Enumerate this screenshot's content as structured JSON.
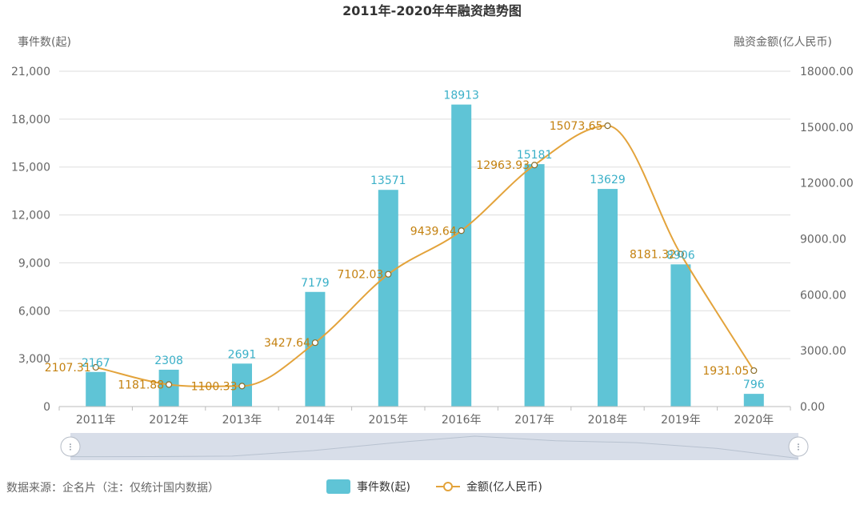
{
  "colors": {
    "bar": "#5fc4d6",
    "line": "#e3a33b",
    "bar_label": "#3ab0c8",
    "line_label": "#c4810f",
    "grid": "#dddddd",
    "axis_text": "#666666",
    "slider_fill": "#d8dee9"
  },
  "chart_data": {
    "type": "bar",
    "title": "2011年-2020年年融资趋势图",
    "categories": [
      "2011年",
      "2012年",
      "2013年",
      "2014年",
      "2015年",
      "2016年",
      "2017年",
      "2018年",
      "2019年",
      "2020年"
    ],
    "y_left_label": "事件数(起)",
    "y_right_label": "融资金额(亿人民币)",
    "y_left_ticks": [
      "0",
      "3,000",
      "6,000",
      "9,000",
      "12,000",
      "15,000",
      "18,000",
      "21,000"
    ],
    "y_right_ticks": [
      "0.00",
      "3000.00",
      "6000.00",
      "9000.00",
      "12000.00",
      "15000.00",
      "18000.00"
    ],
    "ylim_left": [
      0,
      21000
    ],
    "ylim_right": [
      0,
      18000
    ],
    "grid": true,
    "legend_position": "bottom-center",
    "series": [
      {
        "name": "事件数(起)",
        "type": "bar",
        "axis": "left",
        "values": [
          2167,
          2308,
          2691,
          7179,
          13571,
          18913,
          15181,
          13629,
          8906,
          796
        ],
        "labels": [
          "2167",
          "2308",
          "2691",
          "7179",
          "13571",
          "18913",
          "15181",
          "13629",
          "8906",
          "796"
        ]
      },
      {
        "name": "金额(亿人民币)",
        "type": "line",
        "axis": "right",
        "smooth": true,
        "values": [
          2107.31,
          1181.88,
          1100.33,
          3427.64,
          7102.03,
          9439.64,
          12963.93,
          15073.65,
          8181.32,
          1931.05
        ],
        "labels": [
          "2107.31",
          "1181.88",
          "1100.33",
          "3427.64",
          "7102.03",
          "9439.64",
          "12963.93",
          "15073.65",
          "8181.32",
          "1931.05"
        ]
      }
    ]
  },
  "footer": {
    "source": "数据来源：企名片（注：仅统计国内数据）"
  },
  "legend": {
    "bar_label": "事件数(起)",
    "line_label": "金额(亿人民币)"
  },
  "zoom_slider": {
    "handle_glyph": "⁝"
  }
}
